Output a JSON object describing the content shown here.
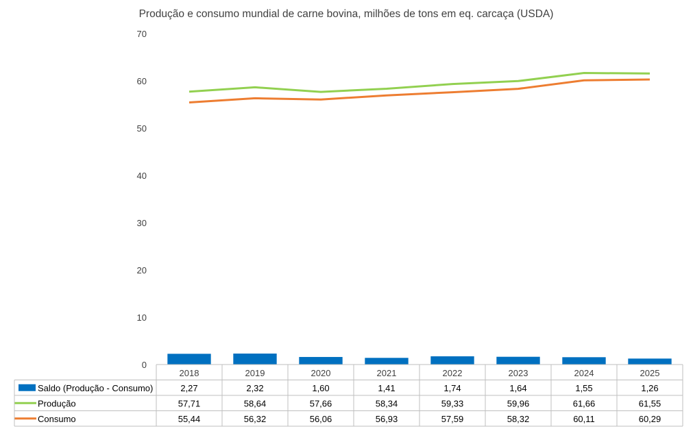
{
  "chart_data": {
    "type": "bar+line",
    "title": "Produção e consumo mundial de carne bovina, milhões de tons em eq. carcaça (USDA)",
    "categories": [
      "2018",
      "2019",
      "2020",
      "2021",
      "2022",
      "2023",
      "2024",
      "2025"
    ],
    "ylim": [
      0,
      70
    ],
    "yticks": [
      "0",
      "10",
      "20",
      "30",
      "40",
      "50",
      "60",
      "70"
    ],
    "series": [
      {
        "name": "Saldo (Produção - Consumo)",
        "kind": "bar",
        "color": "#0070C0",
        "values": [
          2.27,
          2.32,
          1.6,
          1.41,
          1.74,
          1.64,
          1.55,
          1.26
        ],
        "labels": [
          "2,27",
          "2,32",
          "1,60",
          "1,41",
          "1,74",
          "1,64",
          "1,55",
          "1,26"
        ]
      },
      {
        "name": "Produção",
        "kind": "line",
        "color": "#92D050",
        "values": [
          57.71,
          58.64,
          57.66,
          58.34,
          59.33,
          59.96,
          61.66,
          61.55
        ],
        "labels": [
          "57,71",
          "58,64",
          "57,66",
          "58,34",
          "59,33",
          "59,96",
          "61,66",
          "61,55"
        ]
      },
      {
        "name": "Consumo",
        "kind": "line",
        "color": "#ED7D31",
        "values": [
          55.44,
          56.32,
          56.06,
          56.93,
          57.59,
          58.32,
          60.11,
          60.29
        ],
        "labels": [
          "55,44",
          "56,32",
          "56,06",
          "56,93",
          "57,59",
          "58,32",
          "60,11",
          "60,29"
        ]
      }
    ],
    "grid": false,
    "legend": "data-table"
  }
}
